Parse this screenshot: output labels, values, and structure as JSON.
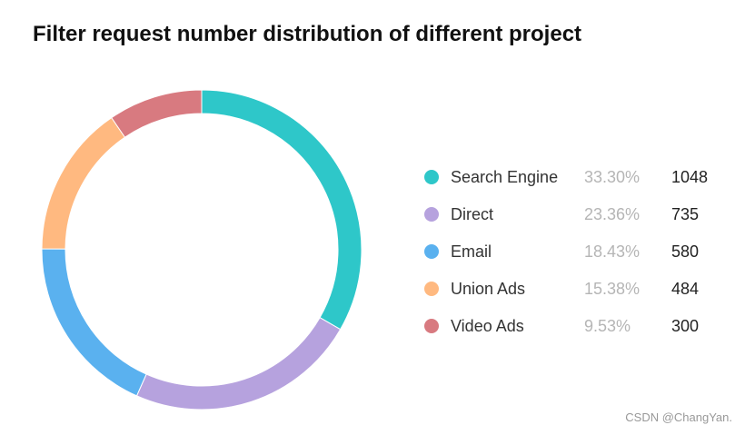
{
  "chart_data": {
    "type": "pie",
    "variant": "donut",
    "title": "Filter request number distribution of different project",
    "categories": [
      "Search Engine",
      "Direct",
      "Email",
      "Union Ads",
      "Video Ads"
    ],
    "values": [
      1048,
      735,
      580,
      484,
      300
    ],
    "percentages": [
      "33.30%",
      "23.36%",
      "18.43%",
      "15.38%",
      "9.53%"
    ],
    "colors": [
      "#2ec7c9",
      "#b6a2de",
      "#5ab1ef",
      "#ffb980",
      "#d87a80"
    ],
    "legend_position": "right",
    "start_angle": "top (12 o'clock), clockwise"
  },
  "watermark": "CSDN @ChangYan."
}
